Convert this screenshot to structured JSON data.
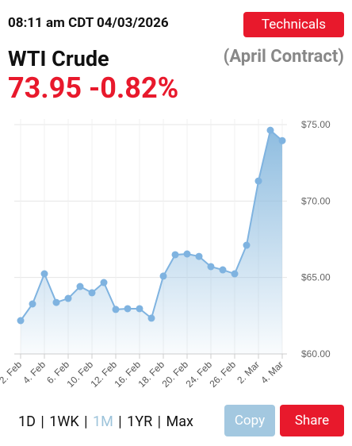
{
  "header": {
    "timestamp": "08:11 am CDT 04/03/2026",
    "button": "Technicals",
    "title": "WTI Crude",
    "contract": "(April Contract)",
    "price": "73.95",
    "change": "-0.82%"
  },
  "chart_data": {
    "type": "area",
    "categories": [
      "2. Feb",
      null,
      "4. Feb",
      null,
      "6. Feb",
      null,
      "10. Feb",
      null,
      "12. Feb",
      null,
      "16. Feb",
      null,
      "18. Feb",
      null,
      "20. Feb",
      null,
      "24. Feb",
      null,
      "26. Feb",
      null,
      "2. Mar",
      null,
      "4. Mar"
    ],
    "series": [
      {
        "color": "#7fb3e0",
        "values": [
          62.18,
          63.27,
          65.24,
          63.37,
          63.63,
          64.41,
          64.0,
          64.67,
          62.91,
          62.96,
          62.96,
          62.34,
          65.09,
          66.49,
          66.54,
          66.38,
          65.71,
          65.5,
          65.24,
          67.11,
          71.31,
          74.63,
          73.95
        ]
      }
    ],
    "ylim": [
      60,
      75
    ],
    "yticks": [
      {
        "value": 60,
        "label": "$60.00"
      },
      {
        "value": 65,
        "label": "$65.00"
      },
      {
        "value": 70,
        "label": "$70.00"
      },
      {
        "value": 75,
        "label": "$75.00"
      }
    ],
    "grid": true
  },
  "controls": {
    "ranges": [
      "1D",
      "1WK",
      "1M",
      "1YR",
      "Max"
    ],
    "selected": 2,
    "copy": "Copy",
    "share": "Share"
  }
}
